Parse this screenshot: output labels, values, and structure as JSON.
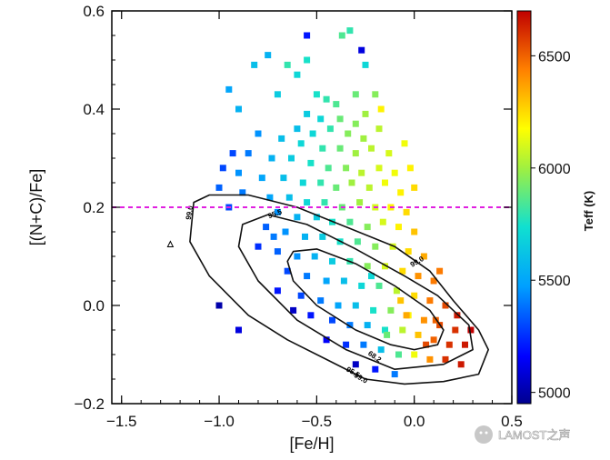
{
  "chart_data": {
    "type": "scatter",
    "title": "",
    "xlabel": "[Fe/H]",
    "ylabel": "[(N+C)/Fe]",
    "xlim": [
      -1.55,
      0.5
    ],
    "ylim": [
      -0.2,
      0.6
    ],
    "xticks": [
      -1.5,
      -1.0,
      -0.5,
      0.0,
      0.5
    ],
    "xtick_labels": [
      "−1.5",
      "−1.0",
      "−0.5",
      "0.0",
      "0.5"
    ],
    "yticks": [
      -0.2,
      0.0,
      0.2,
      0.4,
      0.6
    ],
    "ytick_labels": [
      "−0.2",
      "0.0",
      "0.2",
      "0.4",
      "0.6"
    ],
    "grid": false,
    "colorbar": {
      "label": "Teff (K)",
      "range": [
        4950,
        6700
      ],
      "ticks": [
        5000,
        5500,
        6000,
        6500
      ],
      "tick_labels": [
        "5000",
        "5500",
        "6000",
        "6500"
      ],
      "colormap": "rainbow (blue to red)"
    },
    "reference_line": {
      "y": 0.2,
      "style": "dashed",
      "color": "#e020e0"
    },
    "contour_labels": [
      "99.0",
      "95.5",
      "68.2"
    ],
    "contour_label_texts": [
      {
        "text": "99.0",
        "x": -1.14,
        "y": 0.188,
        "rot": -80
      },
      {
        "text": "95.5",
        "x": -0.71,
        "y": 0.182,
        "rot": -20
      },
      {
        "text": "99.0",
        "x": 0.02,
        "y": 0.085,
        "rot": -30
      },
      {
        "text": "68.2",
        "x": -0.21,
        "y": -0.108,
        "rot": 35
      },
      {
        "text": "95.5",
        "x": -0.32,
        "y": -0.14,
        "rot": 30
      },
      {
        "text": "99.0",
        "x": -0.28,
        "y": -0.152,
        "rot": 30
      }
    ],
    "contours": [
      {
        "level": "99.0",
        "points": [
          [
            -1.13,
            0.21
          ],
          [
            -1.05,
            0.225
          ],
          [
            -0.85,
            0.225
          ],
          [
            -0.6,
            0.2
          ],
          [
            -0.35,
            0.16
          ],
          [
            -0.1,
            0.12
          ],
          [
            0.08,
            0.07
          ],
          [
            0.2,
            0.01
          ],
          [
            0.33,
            -0.05
          ],
          [
            0.38,
            -0.09
          ],
          [
            0.33,
            -0.14
          ],
          [
            0.15,
            -0.155
          ],
          [
            -0.05,
            -0.16
          ],
          [
            -0.25,
            -0.15
          ],
          [
            -0.45,
            -0.11
          ],
          [
            -0.65,
            -0.07
          ],
          [
            -0.85,
            -0.02
          ],
          [
            -1.05,
            0.06
          ],
          [
            -1.15,
            0.13
          ]
        ]
      },
      {
        "level": "95.5",
        "points": [
          [
            -0.88,
            0.165
          ],
          [
            -0.75,
            0.185
          ],
          [
            -0.55,
            0.165
          ],
          [
            -0.3,
            0.115
          ],
          [
            -0.05,
            0.06
          ],
          [
            0.12,
            0.02
          ],
          [
            0.28,
            -0.04
          ],
          [
            0.3,
            -0.09
          ],
          [
            0.15,
            -0.12
          ],
          [
            -0.1,
            -0.13
          ],
          [
            -0.35,
            -0.09
          ],
          [
            -0.6,
            -0.03
          ],
          [
            -0.8,
            0.05
          ],
          [
            -0.9,
            0.12
          ]
        ]
      },
      {
        "level": "68.2",
        "points": [
          [
            -0.62,
            0.11
          ],
          [
            -0.5,
            0.115
          ],
          [
            -0.3,
            0.085
          ],
          [
            -0.1,
            0.04
          ],
          [
            0.08,
            -0.01
          ],
          [
            0.15,
            -0.05
          ],
          [
            0.12,
            -0.08
          ],
          [
            0.0,
            -0.09
          ],
          [
            -0.12,
            -0.08
          ],
          [
            -0.3,
            -0.05
          ],
          [
            -0.5,
            -0.0
          ],
          [
            -0.62,
            0.05
          ],
          [
            -0.65,
            0.09
          ]
        ]
      }
    ],
    "outlier_marker": {
      "x": -1.25,
      "y": 0.125
    },
    "series": [
      {
        "points": [
          [
            -0.33,
            0.56
          ],
          [
            -0.37,
            0.55
          ],
          [
            -0.25,
            0.49
          ],
          [
            -0.65,
            0.49
          ],
          [
            -0.82,
            0.49
          ],
          [
            -0.55,
            0.5
          ],
          [
            -0.75,
            0.51
          ],
          [
            -0.6,
            0.47
          ],
          [
            -0.95,
            0.44
          ],
          [
            -0.9,
            0.4
          ],
          [
            -0.7,
            0.43
          ],
          [
            -0.5,
            0.43
          ],
          [
            -0.45,
            0.42
          ],
          [
            -0.4,
            0.41
          ],
          [
            -0.3,
            0.43
          ],
          [
            -0.2,
            0.43
          ],
          [
            -0.55,
            0.39
          ],
          [
            -0.48,
            0.38
          ],
          [
            -0.38,
            0.38
          ],
          [
            -0.3,
            0.37
          ],
          [
            -0.25,
            0.39
          ],
          [
            -0.6,
            0.36
          ],
          [
            -0.52,
            0.35
          ],
          [
            -0.43,
            0.36
          ],
          [
            -0.34,
            0.35
          ],
          [
            -0.26,
            0.34
          ],
          [
            -0.18,
            0.36
          ],
          [
            -0.8,
            0.35
          ],
          [
            -0.68,
            0.34
          ],
          [
            -0.58,
            0.33
          ],
          [
            -0.47,
            0.32
          ],
          [
            -0.38,
            0.32
          ],
          [
            -0.3,
            0.31
          ],
          [
            -0.22,
            0.32
          ],
          [
            -0.13,
            0.31
          ],
          [
            -0.05,
            0.33
          ],
          [
            -0.85,
            0.31
          ],
          [
            -0.73,
            0.3
          ],
          [
            -0.63,
            0.3
          ],
          [
            -0.53,
            0.29
          ],
          [
            -0.44,
            0.28
          ],
          [
            -0.35,
            0.28
          ],
          [
            -0.27,
            0.27
          ],
          [
            -0.18,
            0.28
          ],
          [
            -0.1,
            0.27
          ],
          [
            -0.02,
            0.28
          ],
          [
            -0.98,
            0.28
          ],
          [
            -0.9,
            0.27
          ],
          [
            -0.78,
            0.26
          ],
          [
            -0.67,
            0.26
          ],
          [
            -0.57,
            0.25
          ],
          [
            -0.48,
            0.25
          ],
          [
            -0.4,
            0.24
          ],
          [
            -0.32,
            0.25
          ],
          [
            -0.23,
            0.24
          ],
          [
            -0.15,
            0.25
          ],
          [
            -0.07,
            0.23
          ],
          [
            0.0,
            0.24
          ],
          [
            -1.0,
            0.24
          ],
          [
            -0.88,
            0.23
          ],
          [
            -0.74,
            0.22
          ],
          [
            -0.64,
            0.22
          ],
          [
            -0.55,
            0.21
          ],
          [
            -0.46,
            0.21
          ],
          [
            -0.37,
            0.2
          ],
          [
            -0.28,
            0.21
          ],
          [
            -0.2,
            0.2
          ],
          [
            -0.12,
            0.2
          ],
          [
            -0.04,
            0.19
          ],
          [
            -0.95,
            0.2
          ],
          [
            -0.7,
            0.19
          ],
          [
            -0.6,
            0.18
          ],
          [
            -0.5,
            0.18
          ],
          [
            -0.42,
            0.17
          ],
          [
            -0.33,
            0.17
          ],
          [
            -0.24,
            0.16
          ],
          [
            -0.16,
            0.17
          ],
          [
            -0.08,
            0.16
          ],
          [
            0.0,
            0.15
          ],
          [
            -0.76,
            0.16
          ],
          [
            -0.66,
            0.15
          ],
          [
            -0.56,
            0.14
          ],
          [
            -0.47,
            0.14
          ],
          [
            -0.38,
            0.13
          ],
          [
            -0.29,
            0.13
          ],
          [
            -0.2,
            0.12
          ],
          [
            -0.11,
            0.12
          ],
          [
            -0.03,
            0.11
          ],
          [
            0.05,
            0.1
          ],
          [
            -0.8,
            0.12
          ],
          [
            -0.7,
            0.11
          ],
          [
            -0.6,
            0.1
          ],
          [
            -0.51,
            0.1
          ],
          [
            -0.42,
            0.09
          ],
          [
            -0.33,
            0.09
          ],
          [
            -0.24,
            0.08
          ],
          [
            -0.15,
            0.08
          ],
          [
            -0.06,
            0.07
          ],
          [
            0.02,
            0.06
          ],
          [
            0.1,
            0.05
          ],
          [
            -0.65,
            0.07
          ],
          [
            -0.55,
            0.06
          ],
          [
            -0.45,
            0.05
          ],
          [
            -0.36,
            0.05
          ],
          [
            -0.27,
            0.04
          ],
          [
            -0.18,
            0.04
          ],
          [
            -0.09,
            0.03
          ],
          [
            0.0,
            0.02
          ],
          [
            0.08,
            0.01
          ],
          [
            0.16,
            0.0
          ],
          [
            -0.7,
            0.03
          ],
          [
            -0.58,
            0.02
          ],
          [
            -0.48,
            0.01
          ],
          [
            -0.39,
            0.0
          ],
          [
            -0.3,
            0.0
          ],
          [
            -0.21,
            -0.01
          ],
          [
            -0.12,
            -0.01
          ],
          [
            -0.03,
            -0.02
          ],
          [
            0.05,
            -0.03
          ],
          [
            0.13,
            -0.04
          ],
          [
            0.21,
            -0.05
          ],
          [
            -0.53,
            -0.02
          ],
          [
            -0.42,
            -0.03
          ],
          [
            -0.33,
            -0.04
          ],
          [
            -0.24,
            -0.04
          ],
          [
            -0.15,
            -0.05
          ],
          [
            -0.06,
            -0.05
          ],
          [
            0.02,
            -0.06
          ],
          [
            0.1,
            -0.07
          ],
          [
            0.18,
            -0.08
          ],
          [
            0.26,
            -0.08
          ],
          [
            -0.45,
            -0.07
          ],
          [
            -0.35,
            -0.08
          ],
          [
            -0.26,
            -0.08
          ],
          [
            -0.17,
            -0.09
          ],
          [
            -0.08,
            -0.1
          ],
          [
            0.0,
            -0.1
          ],
          [
            0.08,
            -0.11
          ],
          [
            0.16,
            -0.11
          ],
          [
            0.24,
            -0.12
          ],
          [
            -0.3,
            -0.12
          ],
          [
            -0.2,
            -0.13
          ],
          [
            -0.1,
            -0.14
          ],
          [
            -1.0,
            0.0
          ],
          [
            -0.9,
            -0.05
          ],
          [
            -0.55,
            0.55
          ],
          [
            -0.93,
            0.31
          ],
          [
            -0.72,
            0.14
          ],
          [
            -0.62,
            -0.01
          ],
          [
            -0.27,
            0.52
          ],
          [
            -0.17,
            0.4
          ],
          [
            0.13,
            0.07
          ],
          [
            -0.04,
            -0.02
          ],
          [
            0.22,
            -0.02
          ],
          [
            0.29,
            -0.05
          ],
          [
            0.06,
            -0.08
          ],
          [
            -0.14,
            -0.06
          ],
          [
            0.11,
            -0.03
          ],
          [
            -0.07,
            0.01
          ],
          [
            -0.22,
            0.06
          ]
        ],
        "teff": [
          5800,
          5850,
          5700,
          5800,
          5600,
          5750,
          5550,
          5700,
          5500,
          5550,
          5650,
          5750,
          5800,
          5850,
          5900,
          5950,
          5650,
          5700,
          5900,
          5950,
          6000,
          5600,
          5700,
          5800,
          5950,
          6000,
          6050,
          5450,
          5600,
          5700,
          5800,
          5900,
          6000,
          6050,
          6100,
          6150,
          5400,
          5550,
          5650,
          5750,
          5850,
          5950,
          6050,
          6100,
          6150,
          6200,
          5300,
          5450,
          5500,
          5600,
          5700,
          5800,
          5900,
          6000,
          6050,
          6150,
          6200,
          6250,
          5350,
          5400,
          5500,
          5600,
          5700,
          5800,
          5900,
          6000,
          6100,
          6200,
          6250,
          5300,
          5450,
          5550,
          5650,
          5750,
          5850,
          5950,
          6100,
          6200,
          6300,
          5350,
          5450,
          5550,
          5650,
          5750,
          5850,
          5950,
          6100,
          6250,
          6350,
          5250,
          5350,
          5450,
          5550,
          5650,
          5800,
          5950,
          6100,
          6250,
          6400,
          6450,
          5300,
          5400,
          5500,
          5600,
          5700,
          5850,
          6050,
          6250,
          6450,
          6550,
          5200,
          5300,
          5400,
          5500,
          5600,
          5750,
          5950,
          6200,
          6400,
          6550,
          6600,
          5200,
          5300,
          5400,
          5550,
          5750,
          6050,
          6300,
          6500,
          6600,
          6650,
          5150,
          5250,
          5400,
          5600,
          5850,
          6150,
          6400,
          6600,
          6650,
          5050,
          5200,
          5400,
          5000,
          5100,
          5200,
          5300,
          5400,
          5050,
          5100,
          6200,
          6450,
          6350,
          6650,
          6700,
          6550,
          5900,
          6500,
          6300,
          5700
        ]
      }
    ]
  },
  "watermark": {
    "text": "LAMOST之声"
  }
}
